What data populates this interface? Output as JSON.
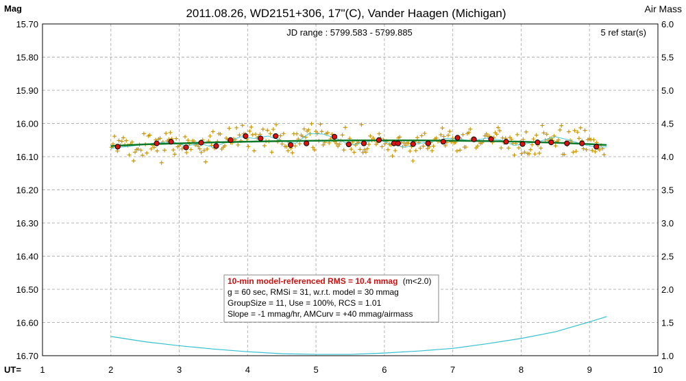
{
  "chart_data": {
    "type": "scatter",
    "title": "2011.08.26, WD2151+306, 17\"(C), Vander Haagen (Michigan)",
    "subtitle": "JD range : 5799.583 - 5799.885",
    "ref_stars": "5 ref star(s)",
    "ylabel_left": "Mag",
    "ylabel_right": "Air Mass",
    "xlabel": "UT=",
    "xlim": [
      1,
      10
    ],
    "ylim_left": [
      15.7,
      16.7
    ],
    "ylim_right": [
      1.0,
      6.0
    ],
    "left_axis_inverted": true,
    "grid": true,
    "x_ticks": [
      "1",
      "2",
      "3",
      "4",
      "5",
      "6",
      "7",
      "8",
      "9",
      "10"
    ],
    "y_ticks_left": [
      "15.70",
      "15.80",
      "15.90",
      "16.00",
      "16.10",
      "16.20",
      "16.30",
      "16.40",
      "16.50",
      "16.60",
      "16.70"
    ],
    "y_ticks_right": [
      "6.0",
      "5.5",
      "5.0",
      "4.5",
      "4.0",
      "3.5",
      "3.0",
      "2.5",
      "2.0",
      "1.5",
      "1.0"
    ],
    "colors": {
      "raw": "#c8960a",
      "group_fill": "#dd1010",
      "model": "#0a7a28",
      "smooth": "#48c8d8",
      "airmass": "#30c0d0",
      "title2": "#1a1a8c",
      "rms": "#cc1010",
      "grid": "#b4b4b4"
    },
    "series": [
      {
        "name": "group averages",
        "x": [
          2.1,
          2.67,
          2.88,
          3.1,
          3.32,
          3.54,
          3.75,
          3.97,
          4.19,
          4.41,
          4.63,
          4.86,
          5.27,
          5.48,
          5.7,
          5.92,
          6.14,
          6.2,
          6.42,
          6.64,
          6.86,
          7.07,
          7.31,
          7.56,
          7.78,
          8.02,
          8.24,
          8.44,
          8.67,
          8.89,
          9.1
        ],
        "y": [
          16.07,
          16.06,
          16.055,
          16.072,
          16.058,
          16.068,
          16.05,
          16.038,
          16.045,
          16.038,
          16.065,
          16.06,
          16.04,
          16.063,
          16.06,
          16.05,
          16.06,
          16.06,
          16.062,
          16.06,
          16.055,
          16.043,
          16.048,
          16.047,
          16.055,
          16.062,
          16.057,
          16.057,
          16.06,
          16.06,
          16.07
        ]
      },
      {
        "name": "model",
        "x": [
          2.0,
          2.5,
          3.0,
          3.5,
          4.0,
          4.5,
          5.0,
          5.5,
          6.0,
          6.5,
          7.0,
          7.5,
          8.0,
          8.5,
          9.0,
          9.25
        ],
        "y": [
          16.068,
          16.063,
          16.06,
          16.057,
          16.055,
          16.053,
          16.052,
          16.051,
          16.051,
          16.051,
          16.052,
          16.053,
          16.055,
          16.058,
          16.062,
          16.065
        ]
      },
      {
        "name": "smoothed",
        "x": [
          2.0,
          2.3,
          2.6,
          2.9,
          3.1,
          3.3,
          3.5,
          3.7,
          3.9,
          4.1,
          4.3,
          4.5,
          4.7,
          4.9,
          5.1,
          5.3,
          5.5,
          5.7,
          5.9,
          6.1,
          6.3,
          6.5,
          6.7,
          6.9,
          7.1,
          7.3,
          7.5,
          7.7,
          7.9,
          8.1,
          8.3,
          8.5,
          8.7,
          8.9,
          9.1,
          9.25
        ],
        "y": [
          16.075,
          16.068,
          16.06,
          16.055,
          16.068,
          16.06,
          16.072,
          16.055,
          16.04,
          16.045,
          16.038,
          16.052,
          16.06,
          16.03,
          16.032,
          16.045,
          16.065,
          16.058,
          16.048,
          16.062,
          16.072,
          16.06,
          16.055,
          16.045,
          16.048,
          16.052,
          16.044,
          16.05,
          16.066,
          16.06,
          16.052,
          16.04,
          16.05,
          16.063,
          16.072,
          16.07
        ]
      },
      {
        "name": "air mass",
        "x": [
          2.0,
          2.5,
          3.0,
          3.5,
          4.0,
          4.5,
          5.0,
          5.5,
          6.0,
          6.5,
          7.0,
          7.5,
          8.0,
          8.5,
          9.0,
          9.25
        ],
        "y": [
          1.29,
          1.21,
          1.15,
          1.1,
          1.06,
          1.03,
          1.02,
          1.02,
          1.04,
          1.07,
          1.11,
          1.18,
          1.26,
          1.36,
          1.51,
          1.59
        ]
      }
    ],
    "annotation": {
      "rms_line": "10-min model-referenced RMS = 10.4 mmag",
      "rms_suffix": "(m<2.0)",
      "line2": "g = 60 sec, RMSi = 31, w.r.t. model = 30 mmag",
      "line3": "GroupSize = 11, Use = 100%, RCS = 1.01",
      "line4": "Slope = -1 mmag/hr, AMCurv = +40 mmag/airmass"
    }
  }
}
